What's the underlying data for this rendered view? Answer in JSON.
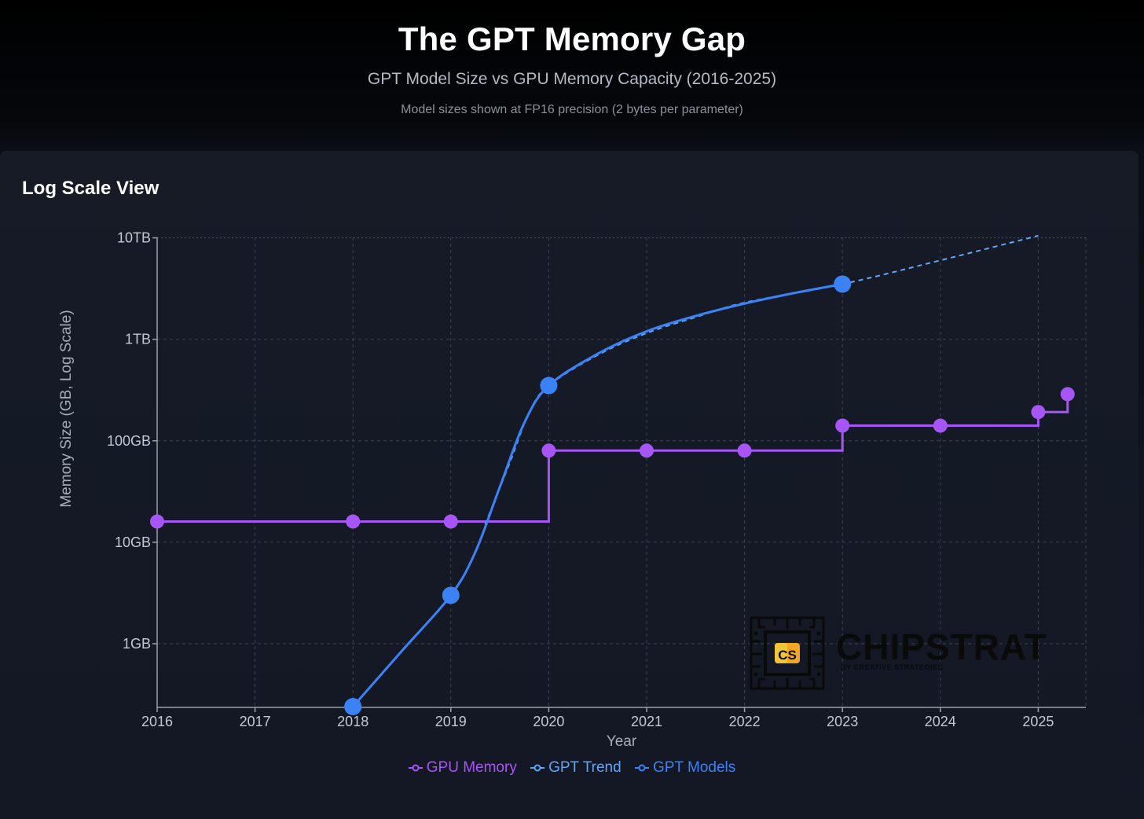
{
  "header": {
    "title": "The GPT Memory Gap",
    "subtitle": "GPT Model Size vs GPU Memory Capacity (2016-2025)",
    "note": "Model sizes shown at FP16 precision (2 bytes per parameter)"
  },
  "card": {
    "title": "Log Scale View"
  },
  "logo": {
    "word": "CHIPSTRAT",
    "sub": "BY CREATIVE STRATEGIES",
    "mark": "CS"
  },
  "colors": {
    "gpu": "#a855f7",
    "gpt": "#3b82f6",
    "trend": "#60a5fa",
    "grid": "#3a4150",
    "axis": "#9aa1ad"
  },
  "chart_data": {
    "type": "line",
    "xlabel": "Year",
    "ylabel": "Memory Size (GB, Log Scale)",
    "xlim": [
      2016,
      2025.5
    ],
    "ylim": [
      0.24,
      10000
    ],
    "yscale": "log",
    "x_ticks": [
      2016,
      2017,
      2018,
      2019,
      2020,
      2021,
      2022,
      2023,
      2024,
      2025
    ],
    "y_ticks": [
      {
        "value": 1,
        "label": "1GB"
      },
      {
        "value": 10,
        "label": "10GB"
      },
      {
        "value": 100,
        "label": "100GB"
      },
      {
        "value": 1000,
        "label": "1TB"
      },
      {
        "value": 10000,
        "label": "10TB"
      }
    ],
    "grid": true,
    "legend_position": "bottom-center",
    "series": [
      {
        "name": "GPU Memory",
        "style": "step",
        "points": [
          {
            "x": 2016,
            "y": 16
          },
          {
            "x": 2018,
            "y": 16
          },
          {
            "x": 2019,
            "y": 16
          },
          {
            "x": 2020,
            "y": 80
          },
          {
            "x": 2021,
            "y": 80
          },
          {
            "x": 2022,
            "y": 80
          },
          {
            "x": 2023,
            "y": 141
          },
          {
            "x": 2024,
            "y": 141
          },
          {
            "x": 2025,
            "y": 192
          },
          {
            "x": 2025.3,
            "y": 288
          }
        ]
      },
      {
        "name": "GPT Trend",
        "style": "dashed",
        "points": [
          {
            "x": 2019.35,
            "y": 15
          },
          {
            "x": 2019.6,
            "y": 60
          },
          {
            "x": 2019.8,
            "y": 190
          },
          {
            "x": 2020,
            "y": 350
          },
          {
            "x": 2020.5,
            "y": 700
          },
          {
            "x": 2021,
            "y": 1150
          },
          {
            "x": 2021.5,
            "y": 1650
          },
          {
            "x": 2022,
            "y": 2300
          },
          {
            "x": 2023,
            "y": 3500
          },
          {
            "x": 2024,
            "y": 6000
          },
          {
            "x": 2025,
            "y": 10500
          }
        ]
      },
      {
        "name": "GPT Models",
        "style": "smooth",
        "points": [
          {
            "x": 2018,
            "y": 0.24
          },
          {
            "x": 2019,
            "y": 3
          },
          {
            "x": 2020,
            "y": 350
          },
          {
            "x": 2023,
            "y": 3500
          }
        ]
      }
    ]
  }
}
